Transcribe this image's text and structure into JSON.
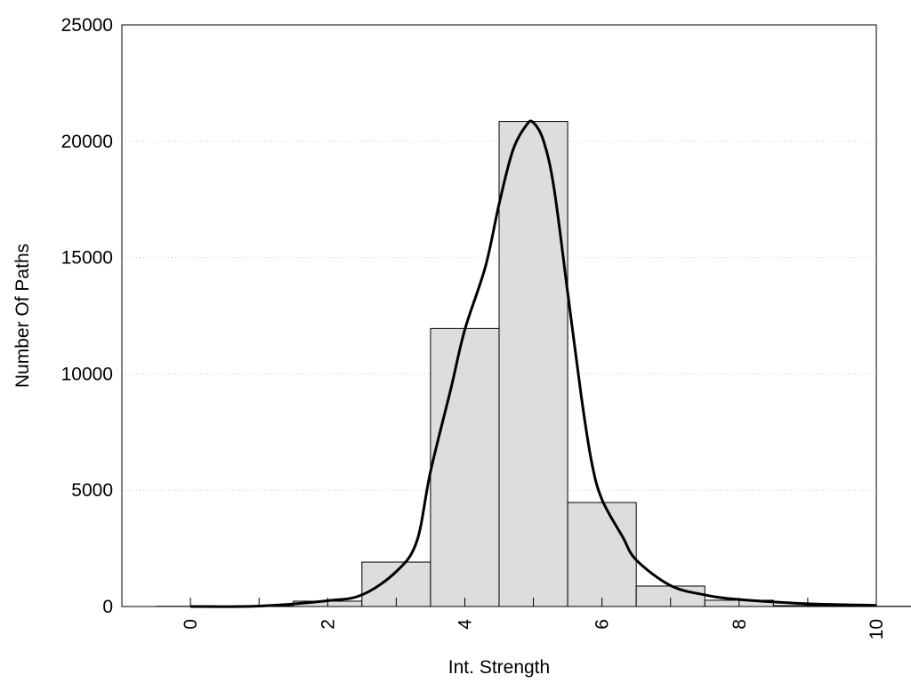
{
  "chart_data": {
    "type": "bar",
    "title": "",
    "xlabel": "Int. Strength",
    "ylabel": "Number Of Paths",
    "xlim": [
      -1,
      10
    ],
    "ylim": [
      0,
      25000
    ],
    "grid": "horizontal dotted",
    "x_ticks": [
      0,
      2,
      4,
      6,
      8,
      10
    ],
    "y_ticks": [
      0,
      5000,
      10000,
      15000,
      20000,
      25000
    ],
    "bar_color": "#dddddd",
    "bins": [
      0,
      1,
      2,
      3,
      4,
      5,
      6,
      7,
      8,
      9,
      10
    ],
    "values": [
      10,
      20,
      230,
      1910,
      11950,
      20850,
      4470,
      880,
      270,
      40,
      10
    ],
    "fit_curve": {
      "x": [
        0,
        1,
        2,
        2.5,
        3,
        3.3,
        3.5,
        3.8,
        4,
        4.3,
        4.5,
        4.7,
        4.9,
        5,
        5.15,
        5.3,
        5.5,
        5.7,
        5.85,
        6,
        6.3,
        6.5,
        7,
        7.5,
        8,
        9,
        10
      ],
      "y": [
        0,
        20,
        250,
        500,
        1500,
        2800,
        5800,
        9400,
        11900,
        14600,
        17300,
        19600,
        20700,
        20800,
        20000,
        18000,
        13500,
        9000,
        6200,
        4600,
        3000,
        2000,
        900,
        500,
        300,
        120,
        50
      ]
    }
  }
}
